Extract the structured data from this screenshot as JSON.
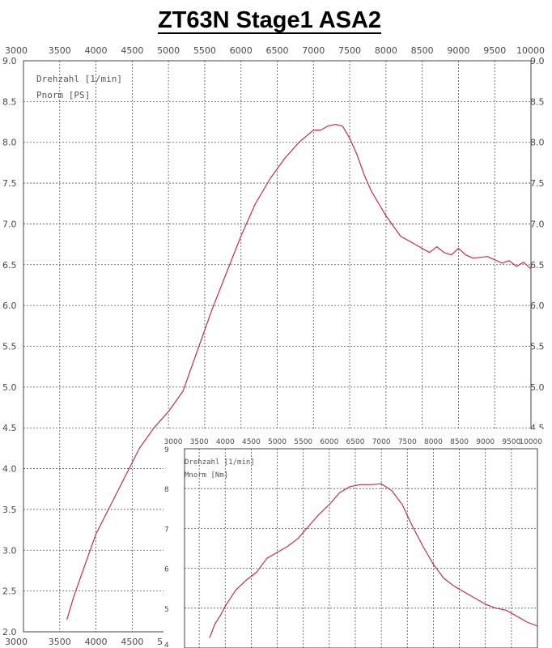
{
  "header": {
    "title": "ZT63N Stage1 ASA2"
  },
  "colors": {
    "series": "#c0304a",
    "grid": "#555555",
    "tick": "#4a4a4a"
  },
  "chart_data": [
    {
      "type": "line",
      "title": "ZT63N Stage1 ASA2",
      "legend": [
        "Drehzahl [1/min]",
        "Pnorm [PS]"
      ],
      "legend_position": "top-left",
      "grid": true,
      "xlim": [
        3000,
        10000
      ],
      "ylim": [
        2.0,
        9.0
      ],
      "x_ticks": [
        "3000",
        "3500",
        "4000",
        "4500",
        "5000",
        "5500",
        "6000",
        "6500",
        "7000",
        "7500",
        "8000",
        "8500",
        "9000",
        "9500",
        "10000"
      ],
      "y_ticks_left": [
        "2.0",
        "2.5",
        "3.0",
        "3.5",
        "4.0",
        "4.5",
        "5.0",
        "5.5",
        "6.0",
        "6.5",
        "7.0",
        "7.5",
        "8.0",
        "8.5",
        "9.0"
      ],
      "y_ticks_right": [
        "4.5",
        "5.0",
        "5.5",
        "6.0",
        "6.5",
        "7.0",
        "7.5",
        "8.0",
        "8.5",
        "9.0"
      ],
      "series": [
        {
          "name": "Pnorm [PS]",
          "x": [
            3600,
            3700,
            3800,
            3900,
            4000,
            4200,
            4400,
            4600,
            4800,
            5000,
            5200,
            5400,
            5600,
            5800,
            6000,
            6200,
            6400,
            6600,
            6800,
            7000,
            7100,
            7200,
            7300,
            7400,
            7500,
            7600,
            7700,
            7800,
            7900,
            8000,
            8200,
            8400,
            8600,
            8700,
            8800,
            8900,
            9000,
            9100,
            9200,
            9400,
            9600,
            9700,
            9800,
            9900,
            10000
          ],
          "y": [
            2.15,
            2.45,
            2.7,
            2.95,
            3.2,
            3.55,
            3.9,
            4.25,
            4.5,
            4.7,
            4.95,
            5.45,
            5.95,
            6.4,
            6.85,
            7.25,
            7.55,
            7.8,
            8.0,
            8.15,
            8.15,
            8.2,
            8.22,
            8.2,
            8.05,
            7.85,
            7.6,
            7.4,
            7.25,
            7.1,
            6.85,
            6.75,
            6.65,
            6.72,
            6.65,
            6.62,
            6.7,
            6.62,
            6.58,
            6.6,
            6.52,
            6.55,
            6.48,
            6.53,
            6.45
          ]
        }
      ]
    },
    {
      "type": "line",
      "legend": [
        "Drehzahl [1/min]",
        "Mnorm [Nm]"
      ],
      "legend_position": "top-left",
      "grid": true,
      "xlim": [
        3000,
        10000
      ],
      "ylim": [
        4,
        9
      ],
      "x_ticks": [
        "3000",
        "3500",
        "4000",
        "4500",
        "5000",
        "5500",
        "6000",
        "6500",
        "7000",
        "7500",
        "8000",
        "8500",
        "9000",
        "9500",
        "10000"
      ],
      "y_ticks": [
        "4",
        "5",
        "6",
        "7",
        "8",
        "9"
      ],
      "series": [
        {
          "name": "Mnorm [Nm]",
          "x": [
            3700,
            3800,
            3900,
            4000,
            4200,
            4400,
            4600,
            4800,
            5000,
            5200,
            5400,
            5600,
            5800,
            6000,
            6200,
            6400,
            6600,
            6800,
            7000,
            7200,
            7400,
            7600,
            7800,
            8000,
            8200,
            8400,
            8600,
            8800,
            9000,
            9200,
            9400,
            9600,
            9800,
            10000
          ],
          "y": [
            4.25,
            4.6,
            4.8,
            5.05,
            5.45,
            5.7,
            5.9,
            6.25,
            6.4,
            6.55,
            6.75,
            7.05,
            7.35,
            7.6,
            7.9,
            8.05,
            8.1,
            8.1,
            8.12,
            7.95,
            7.6,
            7.05,
            6.55,
            6.1,
            5.75,
            5.55,
            5.4,
            5.25,
            5.1,
            5.0,
            4.95,
            4.8,
            4.65,
            4.55
          ]
        }
      ]
    }
  ]
}
